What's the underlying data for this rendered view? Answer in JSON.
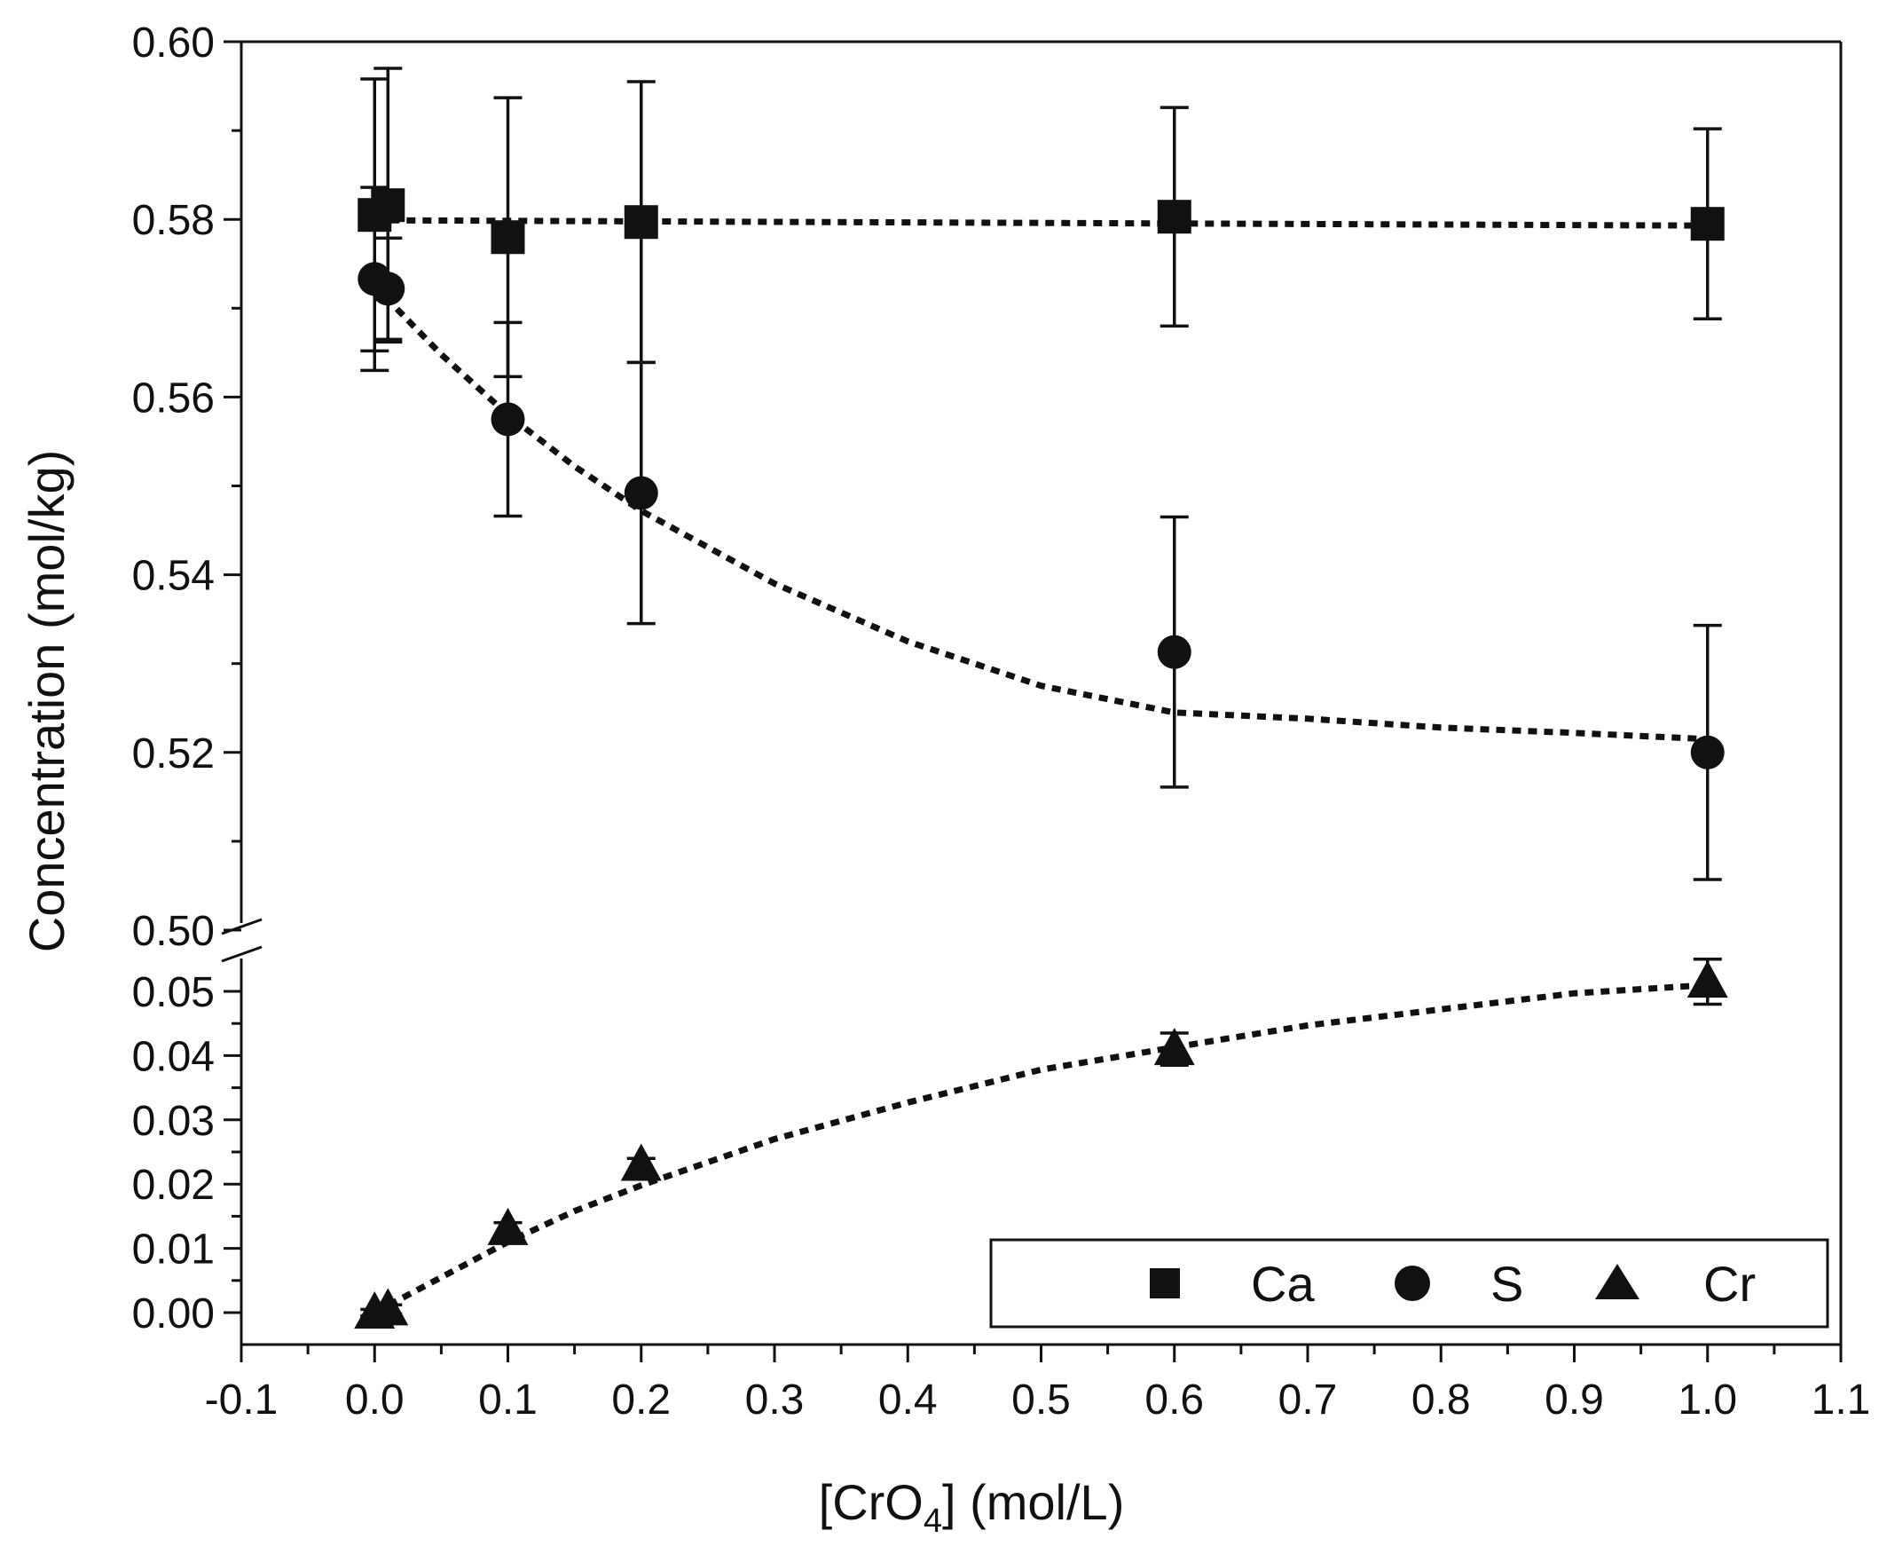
{
  "chart_data": {
    "type": "scatter",
    "xlabel_main": "[CrO",
    "xlabel_sub": "4",
    "xlabel_tail": "] (mol/L)",
    "ylabel": "Concentration (mol/kg)",
    "xlim": [
      -0.1,
      1.1
    ],
    "x_ticks": [
      "-0.1",
      "0.0",
      "0.1",
      "0.2",
      "0.3",
      "0.4",
      "0.5",
      "0.6",
      "0.7",
      "0.8",
      "0.9",
      "1.0",
      "1.1"
    ],
    "y_axis_break": true,
    "y_upper": {
      "range": [
        0.5,
        0.6
      ],
      "ticks": [
        "0.50",
        "0.52",
        "0.54",
        "0.56",
        "0.58",
        "0.60"
      ]
    },
    "y_lower": {
      "range": [
        -0.005,
        0.055
      ],
      "ticks": [
        "0.00",
        "0.01",
        "0.02",
        "0.03",
        "0.04",
        "0.05"
      ]
    },
    "legend": {
      "position": "bottom-right",
      "entries": [
        "Ca",
        "S",
        "Cr"
      ]
    },
    "series": [
      {
        "name": "Ca",
        "marker": "square",
        "panel": "upper",
        "x": [
          0.0,
          0.01,
          0.1,
          0.2,
          0.6,
          1.0
        ],
        "y": [
          0.5805,
          0.5816,
          0.578,
          0.5797,
          0.5803,
          0.5795
        ],
        "err": [
          0.0153,
          0.0154,
          0.0157,
          0.0158,
          0.0123,
          0.0107
        ],
        "fit": {
          "x": [
            0.0,
            1.0
          ],
          "y": [
            0.5799,
            0.5793
          ]
        }
      },
      {
        "name": "S",
        "marker": "circle",
        "panel": "upper",
        "x": [
          0.0,
          0.01,
          0.1,
          0.2,
          0.6,
          1.0
        ],
        "y": [
          0.5733,
          0.5722,
          0.5575,
          0.5492,
          0.5313,
          0.52
        ],
        "err": [
          0.0103,
          0.0057,
          0.0109,
          0.0147,
          0.0152,
          0.0143
        ],
        "fit": {
          "x": [
            0.0,
            0.05,
            0.1,
            0.15,
            0.2,
            0.3,
            0.4,
            0.5,
            0.6,
            0.7,
            0.8,
            0.9,
            1.0
          ],
          "y": [
            0.5725,
            0.5648,
            0.558,
            0.5522,
            0.5472,
            0.539,
            0.5325,
            0.5275,
            0.5245,
            0.5238,
            0.5228,
            0.5222,
            0.5215
          ]
        }
      },
      {
        "name": "Cr",
        "marker": "triangle",
        "panel": "lower",
        "x": [
          0.0,
          0.01,
          0.1,
          0.2,
          0.6,
          1.0
        ],
        "y": [
          0.0,
          0.0005,
          0.013,
          0.023,
          0.041,
          0.0515
        ],
        "err": [
          0.0005,
          0.0007,
          0.001,
          0.001,
          0.0025,
          0.0035
        ],
        "fit": {
          "x": [
            0.0,
            0.05,
            0.1,
            0.15,
            0.2,
            0.3,
            0.4,
            0.5,
            0.6,
            0.7,
            0.8,
            0.9,
            1.0
          ],
          "y": [
            0.0,
            0.0055,
            0.011,
            0.0158,
            0.0198,
            0.027,
            0.0327,
            0.0378,
            0.0413,
            0.0447,
            0.0472,
            0.0497,
            0.051
          ]
        }
      }
    ]
  }
}
